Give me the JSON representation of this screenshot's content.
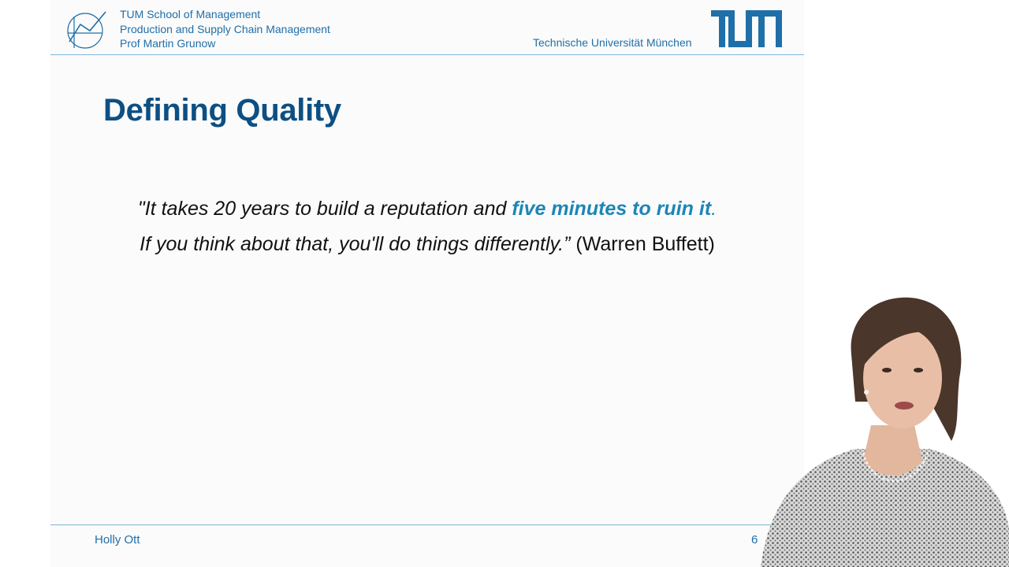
{
  "header": {
    "lines": [
      "TUM School of Management",
      "Production and Supply Chain Management",
      "Prof Martin Grunow"
    ],
    "university": "Technische Universität München"
  },
  "slide": {
    "title": "Defining Quality",
    "quote": {
      "line1_prefix": "\"It takes 20 years to build a reputation and ",
      "line1_emphasis": "five minutes to ruin it",
      "line1_suffix": ".",
      "line2_italic": "If you think about that, you'll do things differently.”",
      "attribution": " (Warren Buffett)"
    }
  },
  "footer": {
    "author": "Holly Ott",
    "page_number": "6"
  },
  "colors": {
    "brand_blue": "#1f6fa8",
    "title_blue": "#0d4f83",
    "emphasis_blue": "#1c86b6"
  }
}
